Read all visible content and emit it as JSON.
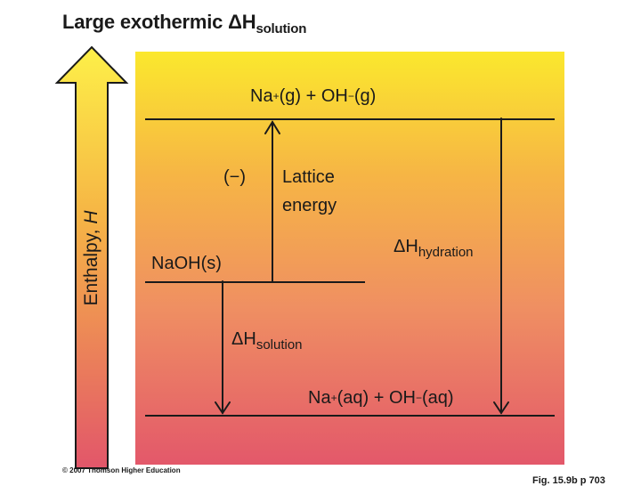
{
  "title": {
    "main": "Large exothermic ",
    "delta": "ΔH",
    "subscript": "solution"
  },
  "axis": {
    "label_prefix": "Enthalpy, ",
    "label_symbol": "H"
  },
  "levels": {
    "gas_ions": {
      "na": "Na",
      "na_charge": "+",
      "na_state": "(g)",
      "plus": " + ",
      "oh": "OH",
      "oh_charge": "−",
      "oh_state": "(g)"
    },
    "solid": {
      "text": "NaOH(s)"
    },
    "aqueous_ions": {
      "na": "Na",
      "na_charge": "+",
      "na_state": "(aq)",
      "plus": " + ",
      "oh": "OH",
      "oh_charge": "−",
      "oh_state": "(aq)"
    }
  },
  "arrows": {
    "lattice": {
      "sign": "(−)",
      "line1": "Lattice",
      "line2": "energy"
    },
    "hydration": {
      "delta": "ΔH",
      "subscript": "hydration"
    },
    "solution": {
      "delta": "ΔH",
      "subscript": "solution"
    }
  },
  "footer": {
    "copyright": "© 2007 Thomson Higher Education",
    "figure_ref": "Fig. 15.9b p 703"
  },
  "colors": {
    "gradient_top": "#fbe82d",
    "gradient_bottom": "#e3586a",
    "arrow_top": "#fdf048",
    "arrow_bottom": "#e2566a",
    "line": "#1a1a1a"
  }
}
